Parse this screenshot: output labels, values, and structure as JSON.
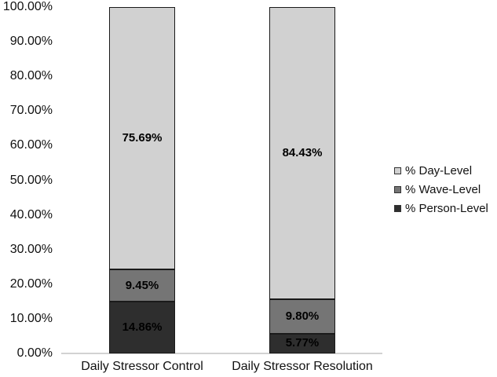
{
  "chart_data": {
    "type": "bar",
    "stacked": true,
    "orientation": "vertical",
    "title": "",
    "xlabel": "",
    "ylabel": "",
    "categories": [
      "Daily Stressor Control",
      "Daily Stressor Resolution"
    ],
    "series": [
      {
        "name": "% Day-Level",
        "values": [
          75.69,
          84.43
        ],
        "labels": [
          "75.69%",
          "84.43%"
        ],
        "color": "#d1d1d1"
      },
      {
        "name": "% Wave-Level",
        "values": [
          9.45,
          9.8
        ],
        "labels": [
          "9.45%",
          "9.80%"
        ],
        "color": "#757575"
      },
      {
        "name": "% Person-Level",
        "values": [
          14.86,
          5.77
        ],
        "labels": [
          "14.86%",
          "5.77%"
        ],
        "color": "#2e2e2e"
      }
    ],
    "stack_order_bottom_to_top": [
      "% Person-Level",
      "% Wave-Level",
      "% Day-Level"
    ],
    "y_ticks": [
      "0.00%",
      "10.00%",
      "20.00%",
      "30.00%",
      "40.00%",
      "50.00%",
      "60.00%",
      "70.00%",
      "80.00%",
      "90.00%",
      "100.00%"
    ],
    "ylim": [
      0,
      100
    ],
    "grid": false,
    "legend_position": "right",
    "colors": {
      "segment_border": "#1a1a1a",
      "axis_line": "#d2d2d2",
      "text": "#111111",
      "data_label_text": "#000000"
    }
  }
}
